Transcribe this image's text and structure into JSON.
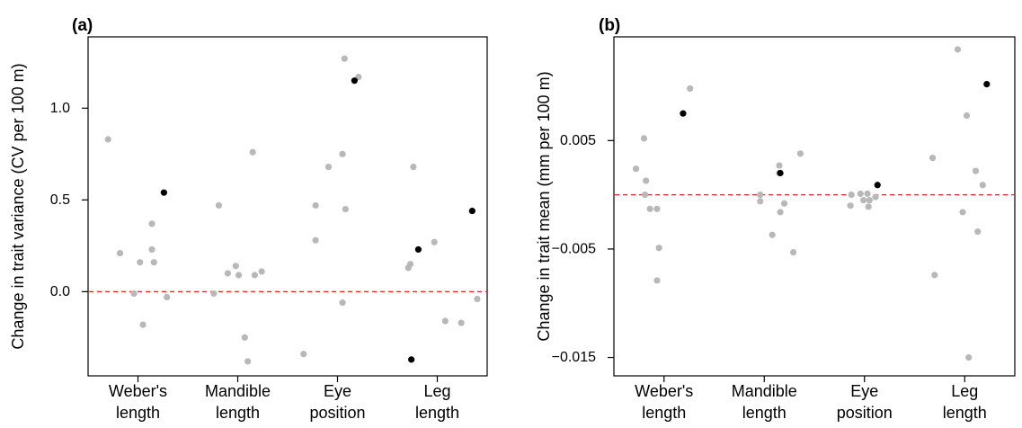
{
  "chart_data": [
    {
      "type": "scatter",
      "panel_label": "(a)",
      "ylabel": "Change in trait variance (CV per 100 m)",
      "categories": [
        "Weber's\nlength",
        "Mandible\nlength",
        "Eye\nposition",
        "Leg\nlength"
      ],
      "yticks": [
        0.0,
        0.5,
        1.0
      ],
      "ytick_labels": [
        "0.0",
        "0.5",
        "1.0"
      ],
      "ylim": [
        -0.4,
        1.32
      ],
      "reference_line": {
        "y": 0,
        "color": "#e8202a",
        "style": "dashed"
      },
      "series": [
        {
          "significant": false,
          "color": "#b8b8b8",
          "points": [
            {
              "category": 0,
              "offset": -0.3,
              "y": 0.83
            },
            {
              "category": 0,
              "offset": -0.18,
              "y": 0.21
            },
            {
              "category": 0,
              "offset": -0.04,
              "y": -0.01
            },
            {
              "category": 0,
              "offset": 0.02,
              "y": 0.16
            },
            {
              "category": 0,
              "offset": 0.05,
              "y": -0.18
            },
            {
              "category": 0,
              "offset": 0.14,
              "y": 0.37
            },
            {
              "category": 0,
              "offset": 0.14,
              "y": 0.23
            },
            {
              "category": 0,
              "offset": 0.16,
              "y": 0.16
            },
            {
              "category": 0,
              "offset": 0.29,
              "y": -0.03
            },
            {
              "category": 1,
              "offset": -0.24,
              "y": -0.01
            },
            {
              "category": 1,
              "offset": -0.19,
              "y": 0.47
            },
            {
              "category": 1,
              "offset": -0.1,
              "y": 0.1
            },
            {
              "category": 1,
              "offset": -0.02,
              "y": 0.14
            },
            {
              "category": 1,
              "offset": 0.01,
              "y": 0.09
            },
            {
              "category": 1,
              "offset": 0.07,
              "y": -0.25
            },
            {
              "category": 1,
              "offset": 0.1,
              "y": -0.38
            },
            {
              "category": 1,
              "offset": 0.15,
              "y": 0.76
            },
            {
              "category": 1,
              "offset": 0.17,
              "y": 0.09
            },
            {
              "category": 1,
              "offset": 0.24,
              "y": 0.11
            },
            {
              "category": 2,
              "offset": -0.34,
              "y": -0.34
            },
            {
              "category": 2,
              "offset": -0.22,
              "y": 0.47
            },
            {
              "category": 2,
              "offset": -0.22,
              "y": 0.28
            },
            {
              "category": 2,
              "offset": -0.09,
              "y": 0.68
            },
            {
              "category": 2,
              "offset": 0.05,
              "y": 0.75
            },
            {
              "category": 2,
              "offset": 0.05,
              "y": -0.06
            },
            {
              "category": 2,
              "offset": 0.07,
              "y": 1.27
            },
            {
              "category": 2,
              "offset": 0.08,
              "y": 0.45
            },
            {
              "category": 2,
              "offset": 0.21,
              "y": 1.17
            },
            {
              "category": 3,
              "offset": -0.29,
              "y": 0.13
            },
            {
              "category": 3,
              "offset": -0.27,
              "y": 0.15
            },
            {
              "category": 3,
              "offset": -0.24,
              "y": 0.68
            },
            {
              "category": 3,
              "offset": -0.03,
              "y": 0.27
            },
            {
              "category": 3,
              "offset": 0.08,
              "y": -0.16
            },
            {
              "category": 3,
              "offset": 0.24,
              "y": -0.17
            },
            {
              "category": 3,
              "offset": 0.4,
              "y": -0.04
            }
          ]
        },
        {
          "significant": true,
          "color": "#000000",
          "points": [
            {
              "category": 0,
              "offset": 0.26,
              "y": 0.54
            },
            {
              "category": 2,
              "offset": 0.17,
              "y": 1.15
            },
            {
              "category": 3,
              "offset": -0.19,
              "y": 0.23
            },
            {
              "category": 3,
              "offset": -0.26,
              "y": -0.37
            },
            {
              "category": 3,
              "offset": 0.35,
              "y": 0.44
            }
          ]
        }
      ]
    },
    {
      "type": "scatter",
      "panel_label": "(b)",
      "ylabel": "Change in trait mean (mm per 100 m)",
      "categories": [
        "Weber's\nlength",
        "Mandible\nlength",
        "Eye\nposition",
        "Leg\nlength"
      ],
      "yticks": [
        -0.015,
        -0.005,
        0.005
      ],
      "ytick_labels": [
        "−0.015",
        "−0.005",
        "0.005"
      ],
      "ylim": [
        -0.0157,
        0.0134
      ],
      "reference_line": {
        "y": 0,
        "color": "#e8202a",
        "style": "dashed"
      },
      "series": [
        {
          "significant": false,
          "color": "#b8b8b8",
          "points": [
            {
              "category": 0,
              "offset": -0.28,
              "y": 0.0024
            },
            {
              "category": 0,
              "offset": -0.2,
              "y": 0.0052
            },
            {
              "category": 0,
              "offset": -0.18,
              "y": 0.0013
            },
            {
              "category": 0,
              "offset": -0.19,
              "y": 0.0
            },
            {
              "category": 0,
              "offset": -0.14,
              "y": -0.0013
            },
            {
              "category": 0,
              "offset": -0.07,
              "y": -0.0013
            },
            {
              "category": 0,
              "offset": -0.07,
              "y": -0.0079
            },
            {
              "category": 0,
              "offset": -0.05,
              "y": -0.0049
            },
            {
              "category": 0,
              "offset": 0.26,
              "y": 0.0098
            },
            {
              "category": 1,
              "offset": -0.04,
              "y": -0.0006
            },
            {
              "category": 1,
              "offset": -0.04,
              "y": 0.0
            },
            {
              "category": 1,
              "offset": 0.08,
              "y": -0.0037
            },
            {
              "category": 1,
              "offset": 0.15,
              "y": 0.0027
            },
            {
              "category": 1,
              "offset": 0.15,
              "y": 0.002
            },
            {
              "category": 1,
              "offset": 0.16,
              "y": -0.0016
            },
            {
              "category": 1,
              "offset": 0.2,
              "y": -0.0008
            },
            {
              "category": 1,
              "offset": 0.29,
              "y": -0.0053
            },
            {
              "category": 1,
              "offset": 0.36,
              "y": 0.0038
            },
            {
              "category": 2,
              "offset": -0.14,
              "y": -0.001
            },
            {
              "category": 2,
              "offset": -0.13,
              "y": 0.0
            },
            {
              "category": 2,
              "offset": -0.04,
              "y": 0.0001
            },
            {
              "category": 2,
              "offset": -0.01,
              "y": -0.0005
            },
            {
              "category": 2,
              "offset": 0.03,
              "y": 0.0001
            },
            {
              "category": 2,
              "offset": 0.04,
              "y": -0.0011
            },
            {
              "category": 2,
              "offset": 0.05,
              "y": -0.0005
            },
            {
              "category": 2,
              "offset": 0.11,
              "y": -0.0002
            },
            {
              "category": 3,
              "offset": -0.32,
              "y": 0.0034
            },
            {
              "category": 3,
              "offset": -0.3,
              "y": -0.0074
            },
            {
              "category": 3,
              "offset": -0.07,
              "y": 0.0134
            },
            {
              "category": 3,
              "offset": -0.02,
              "y": -0.0016
            },
            {
              "category": 3,
              "offset": 0.02,
              "y": 0.0073
            },
            {
              "category": 3,
              "offset": 0.04,
              "y": -0.015
            },
            {
              "category": 3,
              "offset": 0.11,
              "y": 0.0022
            },
            {
              "category": 3,
              "offset": 0.13,
              "y": -0.0034
            },
            {
              "category": 3,
              "offset": 0.18,
              "y": 0.0009
            }
          ]
        },
        {
          "significant": true,
          "color": "#000000",
          "points": [
            {
              "category": 0,
              "offset": 0.19,
              "y": 0.0075
            },
            {
              "category": 1,
              "offset": 0.16,
              "y": 0.002
            },
            {
              "category": 2,
              "offset": 0.13,
              "y": 0.0009
            },
            {
              "category": 3,
              "offset": 0.22,
              "y": 0.0102
            }
          ]
        }
      ]
    }
  ]
}
